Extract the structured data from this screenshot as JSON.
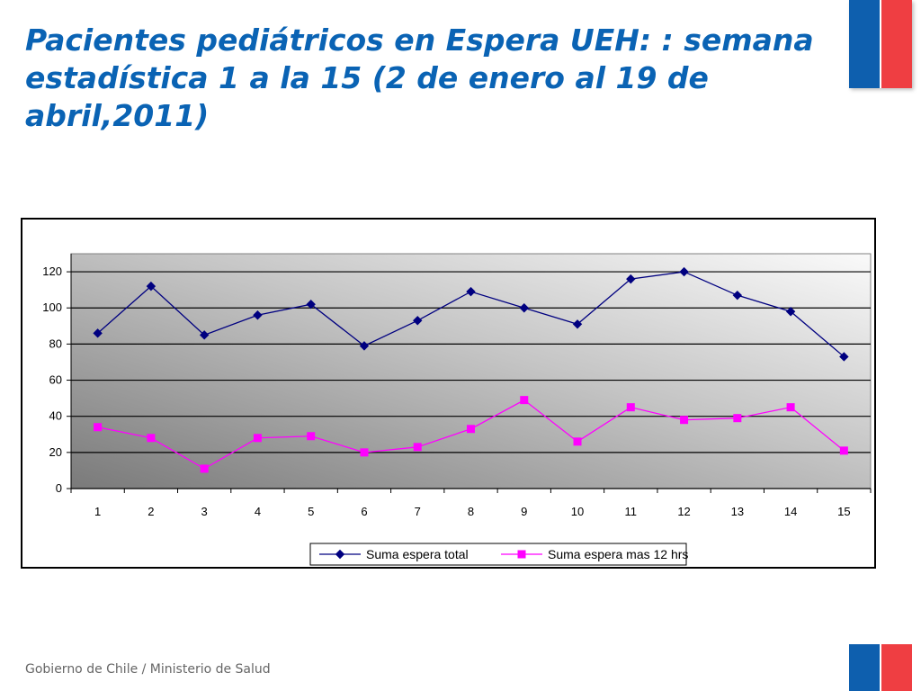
{
  "header": {
    "title": "Pacientes pediátricos en Espera UEH: : semana estadística 1 a la 15 (2 de enero al 19 de abril,2011)"
  },
  "footer": {
    "text": "Gobierno de Chile / Ministerio de Salud"
  },
  "colors": {
    "title": "#0a63b4",
    "flag_blue": "#0e5fae",
    "flag_red": "#ef3e42"
  },
  "chart_data": {
    "type": "line",
    "categories": [
      "1",
      "2",
      "3",
      "4",
      "5",
      "6",
      "7",
      "8",
      "9",
      "10",
      "11",
      "12",
      "13",
      "14",
      "15"
    ],
    "y_ticks": [
      "0",
      "20",
      "40",
      "60",
      "80",
      "100",
      "120"
    ],
    "ylim": [
      0,
      130
    ],
    "grid": true,
    "legend_position": "bottom",
    "series": [
      {
        "name": "Suma espera total",
        "color": "#000080",
        "marker": "diamond",
        "values": [
          86,
          112,
          85,
          96,
          102,
          79,
          93,
          109,
          100,
          91,
          116,
          120,
          107,
          98,
          73
        ]
      },
      {
        "name": "Suma espera mas 12 hrs",
        "color": "#ff00ff",
        "marker": "square",
        "values": [
          34,
          28,
          11,
          28,
          29,
          20,
          23,
          33,
          49,
          26,
          45,
          38,
          39,
          45,
          21
        ]
      }
    ]
  }
}
